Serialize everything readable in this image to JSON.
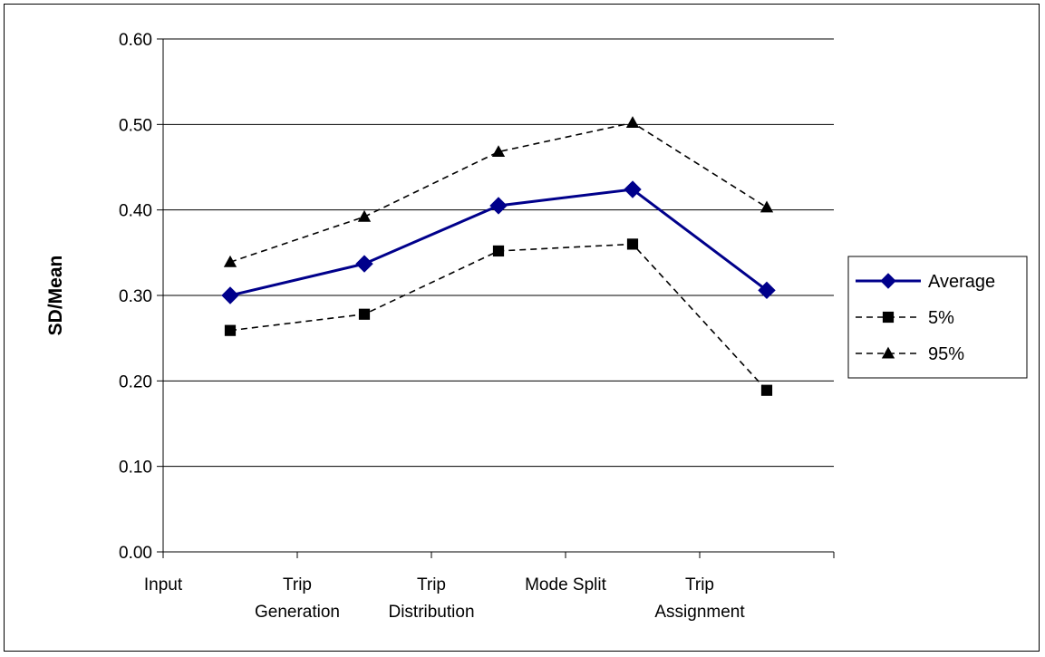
{
  "chart_data": {
    "type": "line",
    "title": "",
    "xlabel": "",
    "ylabel": "SD/Mean",
    "categories": [
      [
        "Input"
      ],
      [
        "Trip",
        "Generation"
      ],
      [
        "Trip",
        "Distribution"
      ],
      [
        "Mode Split"
      ],
      [
        "Trip",
        "Assignment"
      ]
    ],
    "ylim": [
      0,
      0.6
    ],
    "yticks": [
      "0.00",
      "0.10",
      "0.20",
      "0.30",
      "0.40",
      "0.50",
      "0.60"
    ],
    "grid": "horizontal",
    "legend_position": "right",
    "series": [
      {
        "name": "Average",
        "values": [
          0.3,
          0.337,
          0.405,
          0.424,
          0.306
        ],
        "color": "#00008B",
        "style": "solid",
        "marker": "diamond"
      },
      {
        "name": "5%",
        "values": [
          0.259,
          0.278,
          0.352,
          0.36,
          0.189
        ],
        "color": "#000000",
        "style": "dashed",
        "marker": "square"
      },
      {
        "name": "95%",
        "values": [
          0.339,
          0.392,
          0.468,
          0.502,
          0.403
        ],
        "color": "#000000",
        "style": "dashed",
        "marker": "triangle"
      }
    ]
  }
}
